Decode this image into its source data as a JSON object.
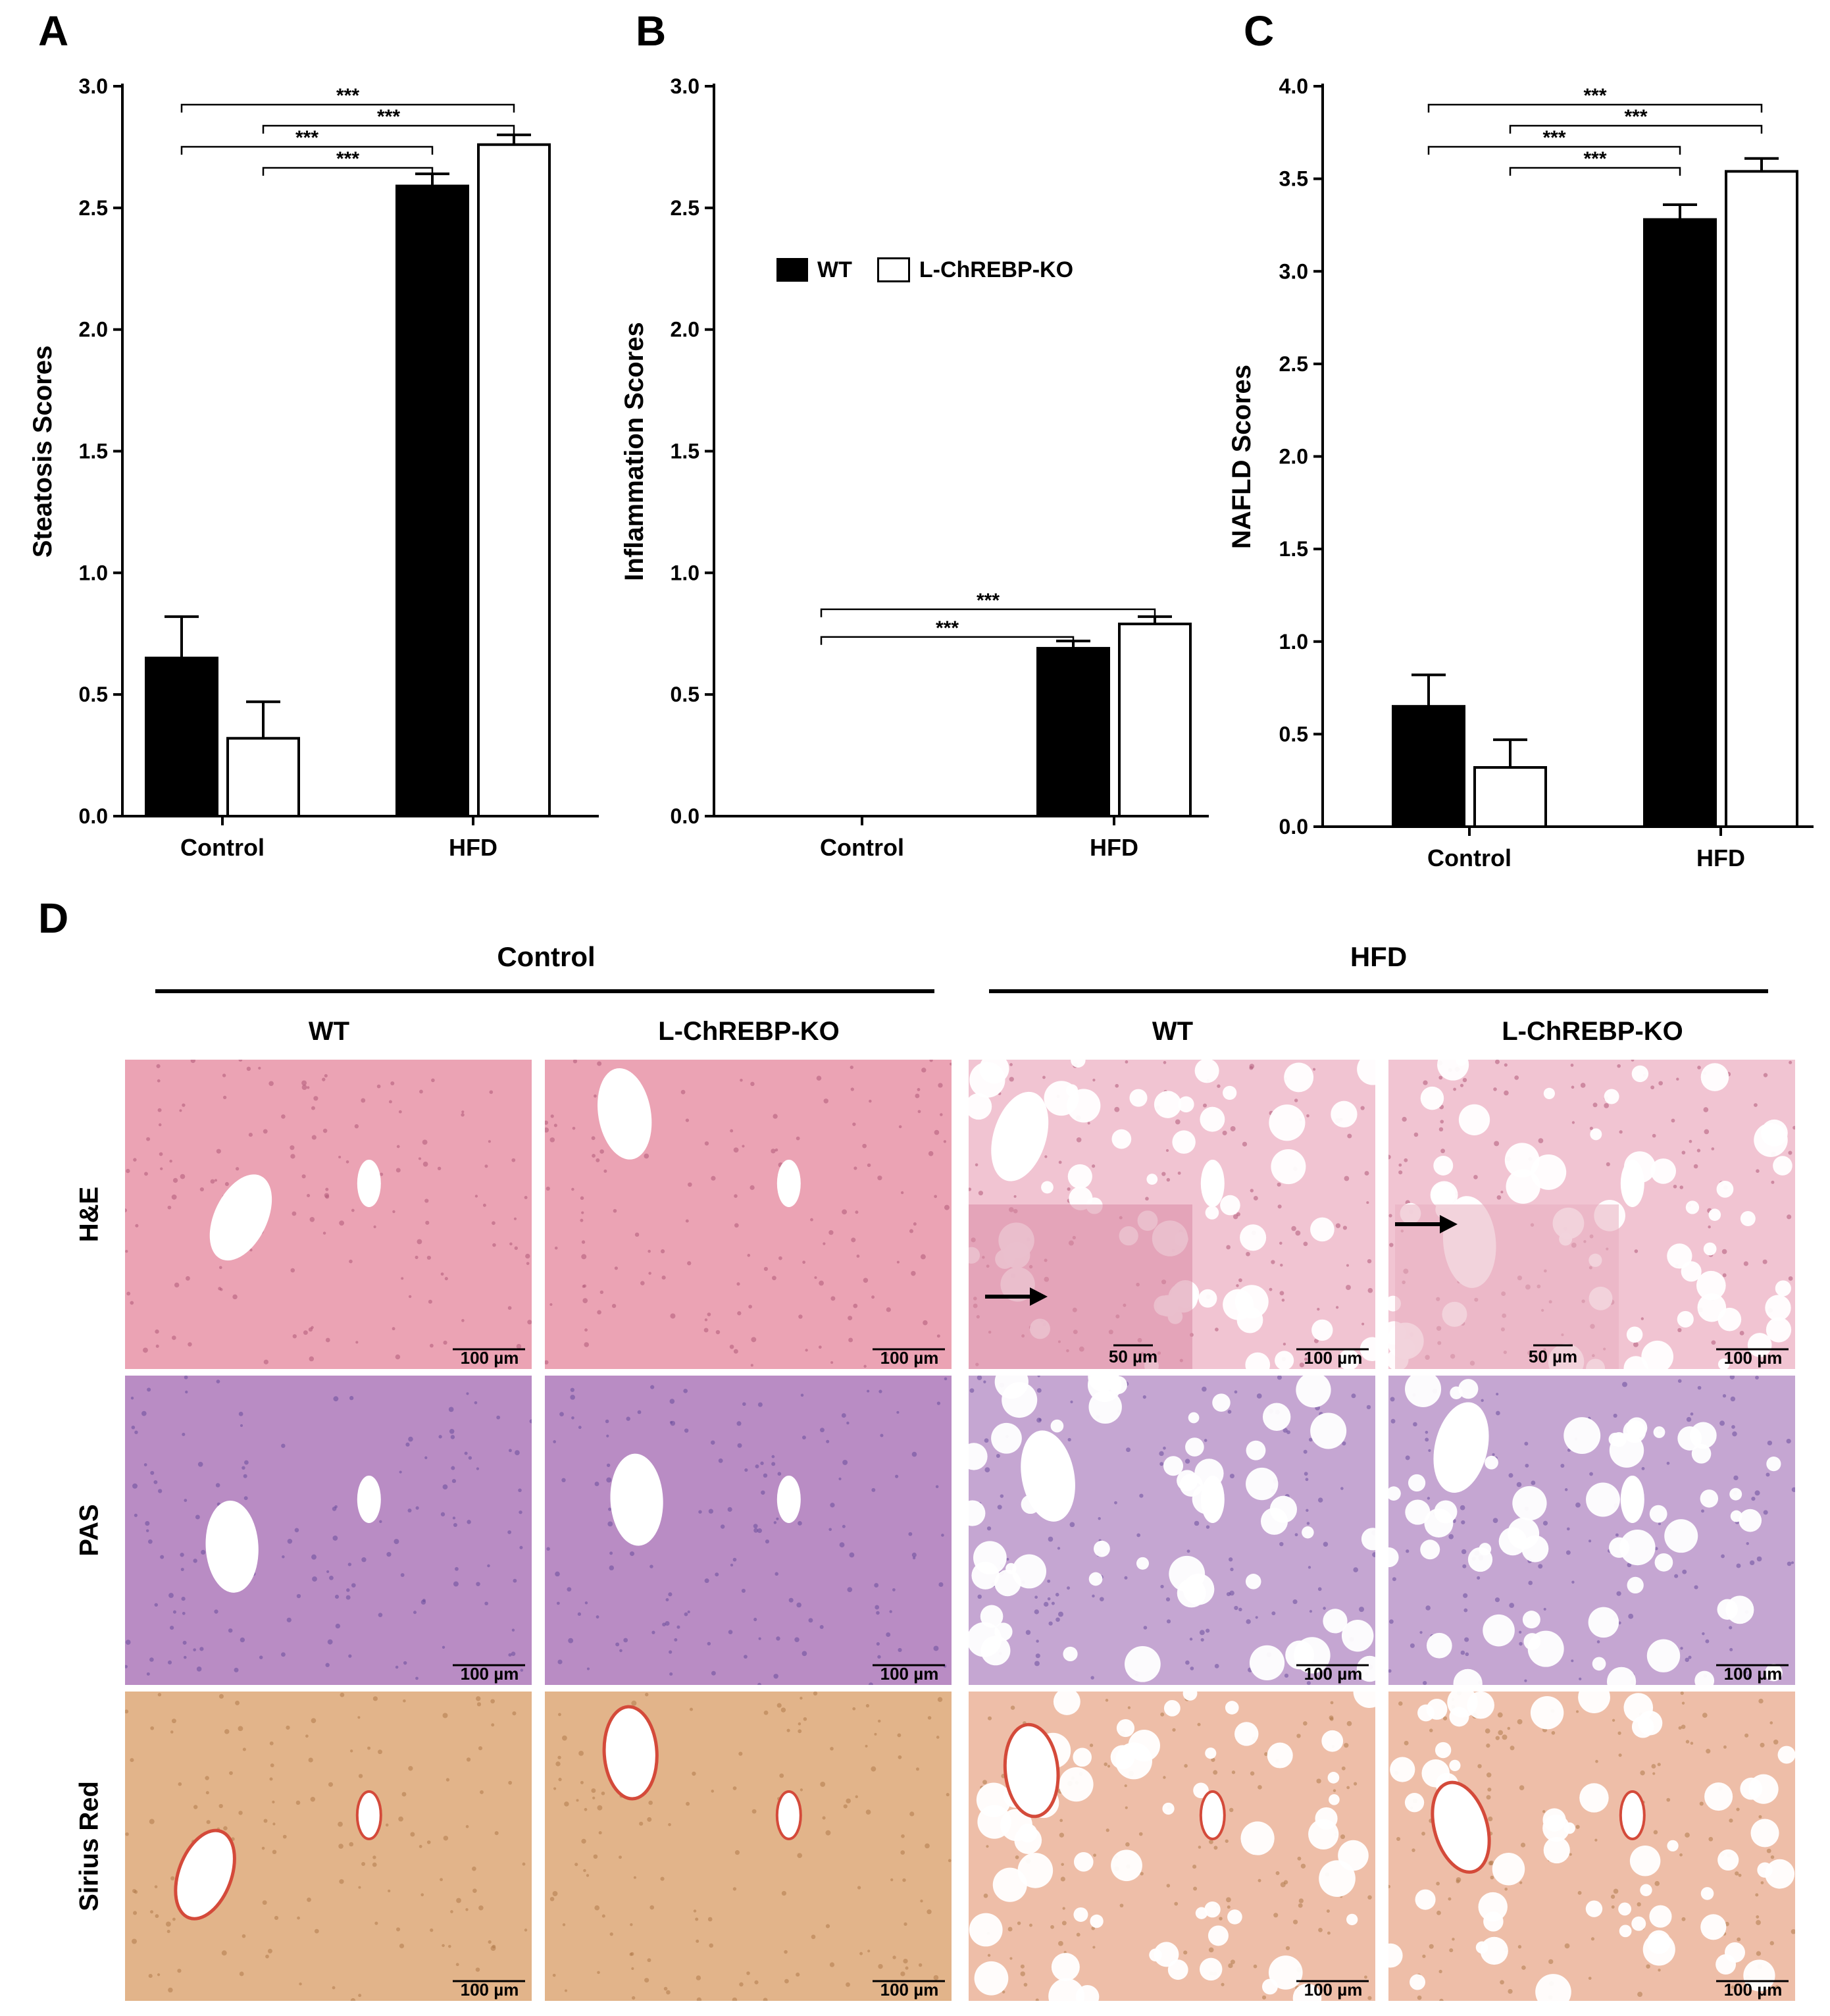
{
  "panels": {
    "A": "A",
    "B": "B",
    "C": "C",
    "D": "D"
  },
  "legend": {
    "wt": "WT",
    "ko": "L-ChREBP-KO"
  },
  "significance": "***",
  "chart_data": [
    {
      "type": "bar",
      "panel": "A",
      "categories": [
        "Control",
        "HFD"
      ],
      "ylabel": "Steatosis Scores",
      "ylim": [
        0,
        3.0
      ],
      "yticks": [
        "0.0",
        "0.5",
        "1.0",
        "1.5",
        "2.0",
        "2.5",
        "3.0"
      ],
      "series": [
        {
          "name": "WT",
          "values": [
            0.65,
            2.59
          ],
          "errors": [
            0.17,
            0.05
          ]
        },
        {
          "name": "L-ChREBP-KO",
          "values": [
            0.32,
            2.76
          ],
          "errors": [
            0.15,
            0.04
          ]
        }
      ],
      "annotations": [
        {
          "from": [
            0,
            0
          ],
          "to": [
            1,
            1
          ],
          "label": "***"
        },
        {
          "from": [
            0,
            1
          ],
          "to": [
            1,
            1
          ],
          "label": "***"
        },
        {
          "from": [
            0,
            0
          ],
          "to": [
            1,
            0
          ],
          "label": "***"
        },
        {
          "from": [
            0,
            1
          ],
          "to": [
            1,
            0
          ],
          "label": "***"
        }
      ]
    },
    {
      "type": "bar",
      "panel": "B",
      "categories": [
        "Control",
        "HFD"
      ],
      "ylabel": "Inflammation Scores",
      "ylim": [
        0,
        3.0
      ],
      "yticks": [
        "0.0",
        "0.5",
        "1.0",
        "1.5",
        "2.0",
        "2.5",
        "3.0"
      ],
      "series": [
        {
          "name": "WT",
          "values": [
            0,
            0.69
          ],
          "errors": [
            0,
            0.03
          ]
        },
        {
          "name": "L-ChREBP-KO",
          "values": [
            0,
            0.79
          ],
          "errors": [
            0,
            0.03
          ]
        }
      ],
      "annotations": [
        {
          "from": [
            0,
            0
          ],
          "to": [
            1,
            1
          ],
          "label": "***"
        },
        {
          "from": [
            0,
            0
          ],
          "to": [
            1,
            0
          ],
          "label": "***"
        }
      ]
    },
    {
      "type": "bar",
      "panel": "C",
      "categories": [
        "Control",
        "HFD"
      ],
      "ylabel": "NAFLD Scores",
      "ylim": [
        0,
        4.0
      ],
      "yticks": [
        "0.0",
        "0.5",
        "1.0",
        "1.5",
        "2.0",
        "2.5",
        "3.0",
        "3.5",
        "4.0"
      ],
      "series": [
        {
          "name": "WT",
          "values": [
            0.65,
            3.28
          ],
          "errors": [
            0.17,
            0.08
          ]
        },
        {
          "name": "L-ChREBP-KO",
          "values": [
            0.32,
            3.54
          ],
          "errors": [
            0.15,
            0.07
          ]
        }
      ],
      "annotations": [
        {
          "from": [
            0,
            0
          ],
          "to": [
            1,
            1
          ],
          "label": "***"
        },
        {
          "from": [
            0,
            1
          ],
          "to": [
            1,
            1
          ],
          "label": "***"
        },
        {
          "from": [
            0,
            0
          ],
          "to": [
            1,
            0
          ],
          "label": "***"
        },
        {
          "from": [
            0,
            1
          ],
          "to": [
            1,
            0
          ],
          "label": "***"
        }
      ]
    }
  ],
  "histology": {
    "groups": [
      "Control",
      "HFD"
    ],
    "columns": [
      "WT",
      "L-ChREBP-KO",
      "WT",
      "L-ChREBP-KO"
    ],
    "rows": [
      "H&E",
      "PAS",
      "Sirius Red"
    ],
    "scale_100": "100 µm",
    "scale_50": "50 µm",
    "colors": {
      "he_control": "#eba3b4",
      "he_hfd": "#f1c4d2",
      "pas_control": "#b98cc4",
      "pas_hfd": "#c5a6d2",
      "sirius_control": "#e2b48a",
      "sirius_hfd": "#eebea8",
      "vessel_edge": "#d44a3a"
    }
  }
}
